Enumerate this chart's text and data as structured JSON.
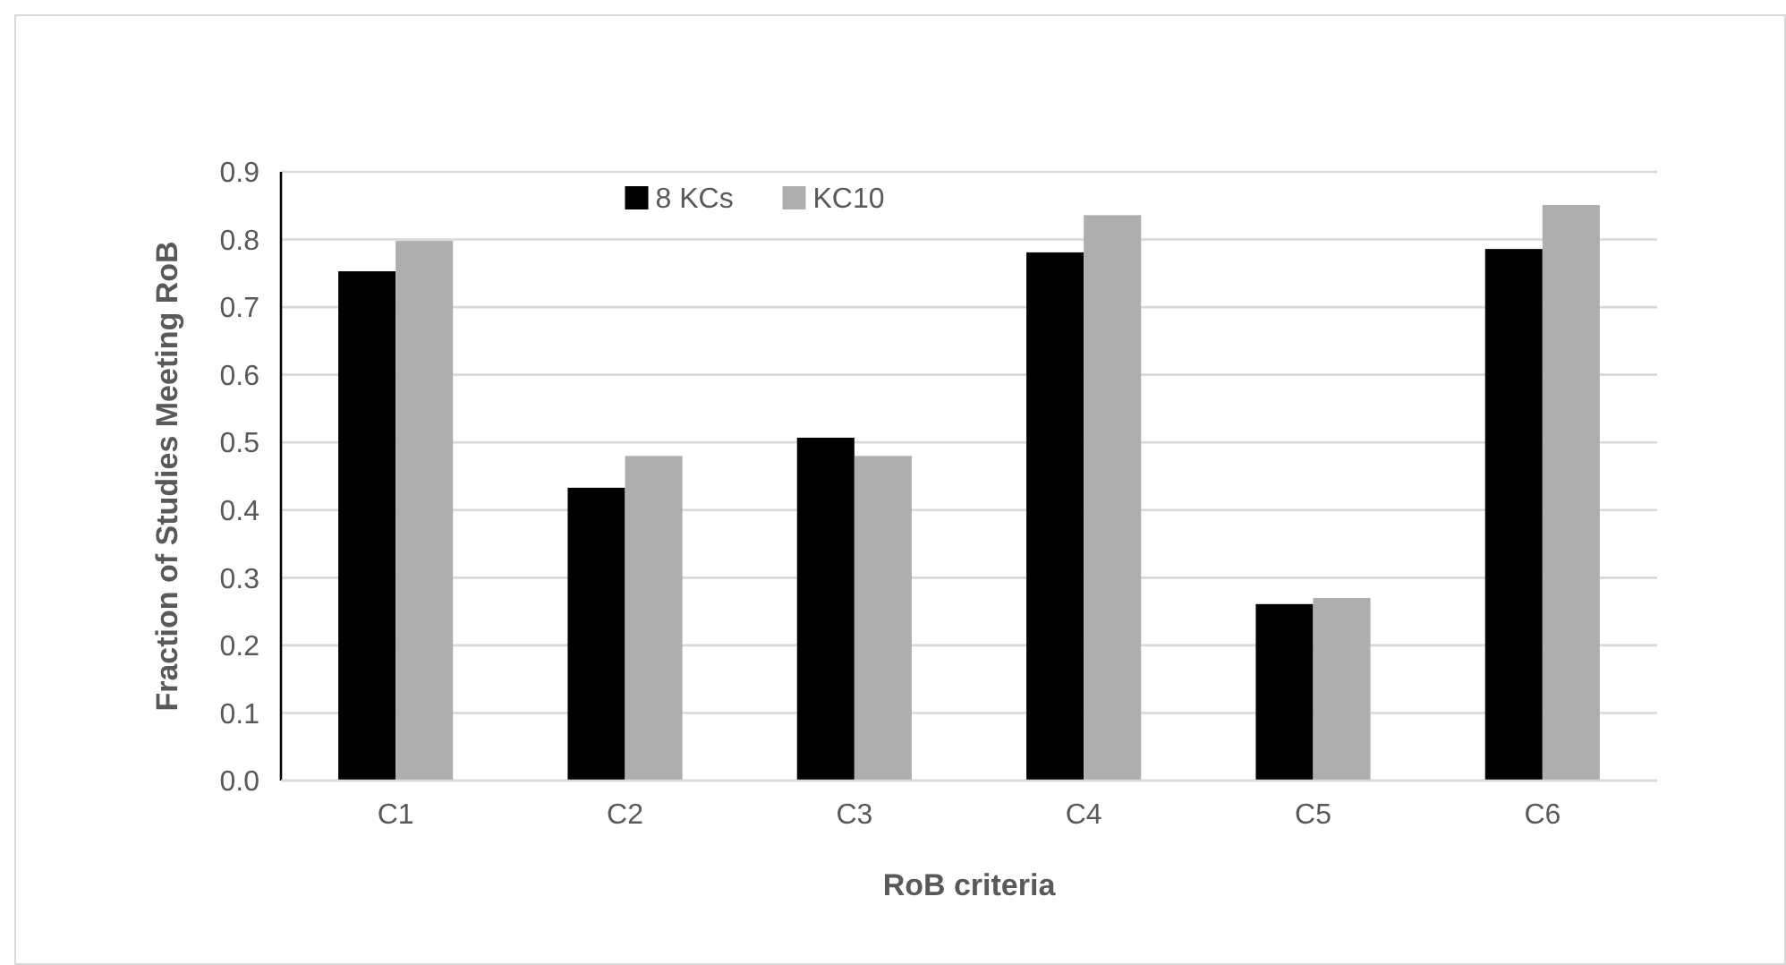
{
  "chart_data": {
    "type": "bar",
    "xlabel": "RoB criteria",
    "ylabel": "Fraction of Studies Meeting RoB",
    "categories": [
      "C1",
      "C2",
      "C3",
      "C4",
      "C5",
      "C6"
    ],
    "series": [
      {
        "name": "8 KCs",
        "color": "#000000",
        "values": [
          0.753,
          0.433,
          0.507,
          0.781,
          0.261,
          0.786
        ]
      },
      {
        "name": "KC10",
        "color": "#aeaeae",
        "values": [
          0.798,
          0.48,
          0.48,
          0.836,
          0.27,
          0.851
        ]
      }
    ],
    "ylim": [
      0,
      0.9
    ],
    "yticks": [
      {
        "value": 0,
        "label": "0.0"
      },
      {
        "value": 0.1,
        "label": "0.1"
      },
      {
        "value": 0.2,
        "label": "0.2"
      },
      {
        "value": 0.3,
        "label": "0.3"
      },
      {
        "value": 0.4,
        "label": "0.4"
      },
      {
        "value": 0.5,
        "label": "0.5"
      },
      {
        "value": 0.6,
        "label": "0.6"
      },
      {
        "value": 0.7,
        "label": "0.7"
      },
      {
        "value": 0.8,
        "label": "0.8"
      },
      {
        "value": 0.9,
        "label": "0.9"
      }
    ],
    "grid": "y",
    "legend": "top"
  }
}
